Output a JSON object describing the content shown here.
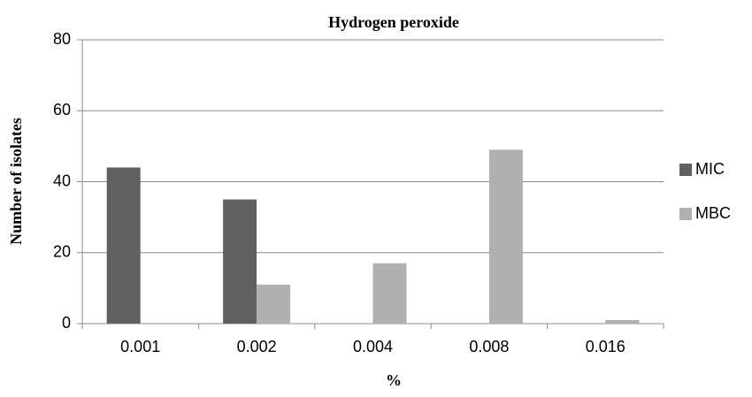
{
  "chart_data": {
    "type": "bar",
    "title": "Hydrogen peroxide",
    "x_label": "%",
    "y_label": "Number of isolates",
    "categories": [
      "0.001",
      "0.002",
      "0.004",
      "0.008",
      "0.016"
    ],
    "series": [
      {
        "name": "MIC",
        "color": "#606060",
        "values": [
          44,
          35,
          0,
          0,
          0
        ]
      },
      {
        "name": "MBC",
        "color": "#b0b0b0",
        "values": [
          0,
          11,
          17,
          49,
          1
        ]
      }
    ],
    "ylim": [
      0,
      80
    ],
    "yticks": [
      0,
      20,
      40,
      60,
      80
    ],
    "grid": true,
    "legend": "right"
  }
}
